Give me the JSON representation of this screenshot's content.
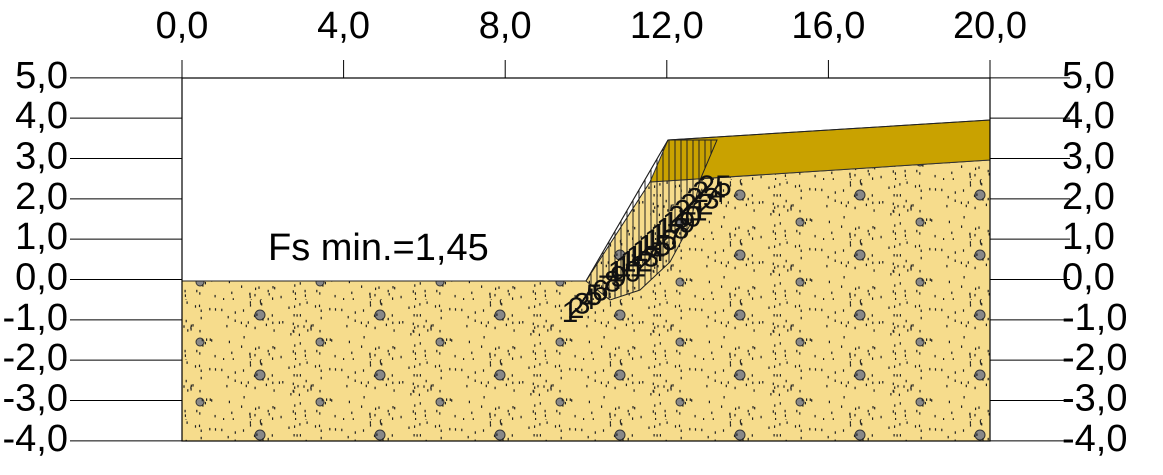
{
  "x_ticks": [
    {
      "value": 0,
      "label": "0,0"
    },
    {
      "value": 4,
      "label": "4,0"
    },
    {
      "value": 8,
      "label": "8,0"
    },
    {
      "value": 12,
      "label": "12,0"
    },
    {
      "value": 16,
      "label": "16,0"
    },
    {
      "value": 20,
      "label": "20,0"
    }
  ],
  "y_ticks": [
    {
      "value": 5,
      "label": "5,0"
    },
    {
      "value": 4,
      "label": "4,0"
    },
    {
      "value": 3,
      "label": "3,0"
    },
    {
      "value": 2,
      "label": "2,0"
    },
    {
      "value": 1,
      "label": "1,0"
    },
    {
      "value": 0,
      "label": "0,0"
    },
    {
      "value": -1,
      "label": "-1,0"
    },
    {
      "value": -2,
      "label": "-2,0"
    },
    {
      "value": -3,
      "label": "-3,0"
    },
    {
      "value": -4,
      "label": "-4,0"
    }
  ],
  "annotation": "Fs min.=1,45",
  "slice_labels": [
    "25",
    "24",
    "23",
    "22",
    "21",
    "20",
    "19",
    "18",
    "17",
    "16",
    "15",
    "14",
    "13",
    "12",
    "11",
    "10",
    "9",
    "8",
    "7",
    "6",
    "5",
    "4",
    "3",
    "2",
    "1"
  ]
}
